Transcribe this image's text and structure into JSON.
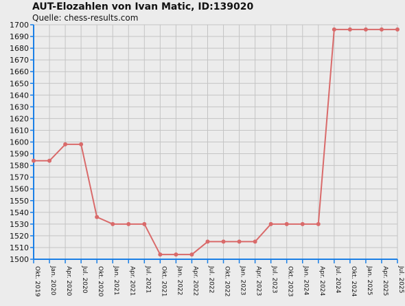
{
  "chart_data": {
    "type": "line",
    "title": "AUT-Elozahlen von Ivan Matic, ID:139020",
    "subtitle": "Quelle: chess-results.com",
    "xlabel": "",
    "ylabel": "",
    "ylim": [
      1500,
      1700
    ],
    "yticks": [
      1500,
      1510,
      1520,
      1530,
      1540,
      1550,
      1560,
      1570,
      1580,
      1590,
      1600,
      1610,
      1620,
      1630,
      1640,
      1650,
      1660,
      1670,
      1680,
      1690,
      1700
    ],
    "categories": [
      "Okt. 2019",
      "Jan. 2020",
      "Apr. 2020",
      "Jul. 2020",
      "Okt. 2020",
      "Jan. 2021",
      "Apr. 2021",
      "Jul. 2021",
      "Okt. 2021",
      "Jan. 2022",
      "Apr. 2022",
      "Jul. 2022",
      "Okt. 2022",
      "Jan. 2023",
      "Apr. 2023",
      "Jul. 2023",
      "Okt. 2023",
      "Jan. 2024",
      "Apr. 2024",
      "Jul. 2024",
      "Okt. 2024",
      "Jan. 2025",
      "Apr. 2025",
      "Jul. 2025"
    ],
    "values": [
      1584,
      1584,
      1598,
      1598,
      1536,
      1530,
      1530,
      1530,
      1504,
      1504,
      1504,
      1515,
      1515,
      1515,
      1515,
      1530,
      1530,
      1530,
      1530,
      1696,
      1696,
      1696,
      1696,
      1696
    ],
    "grid": true,
    "colors": {
      "line": "#d96a6a",
      "axis": "#1a7fe6",
      "grid": "#c4c4c4",
      "plot_bg": "#ececec"
    }
  }
}
